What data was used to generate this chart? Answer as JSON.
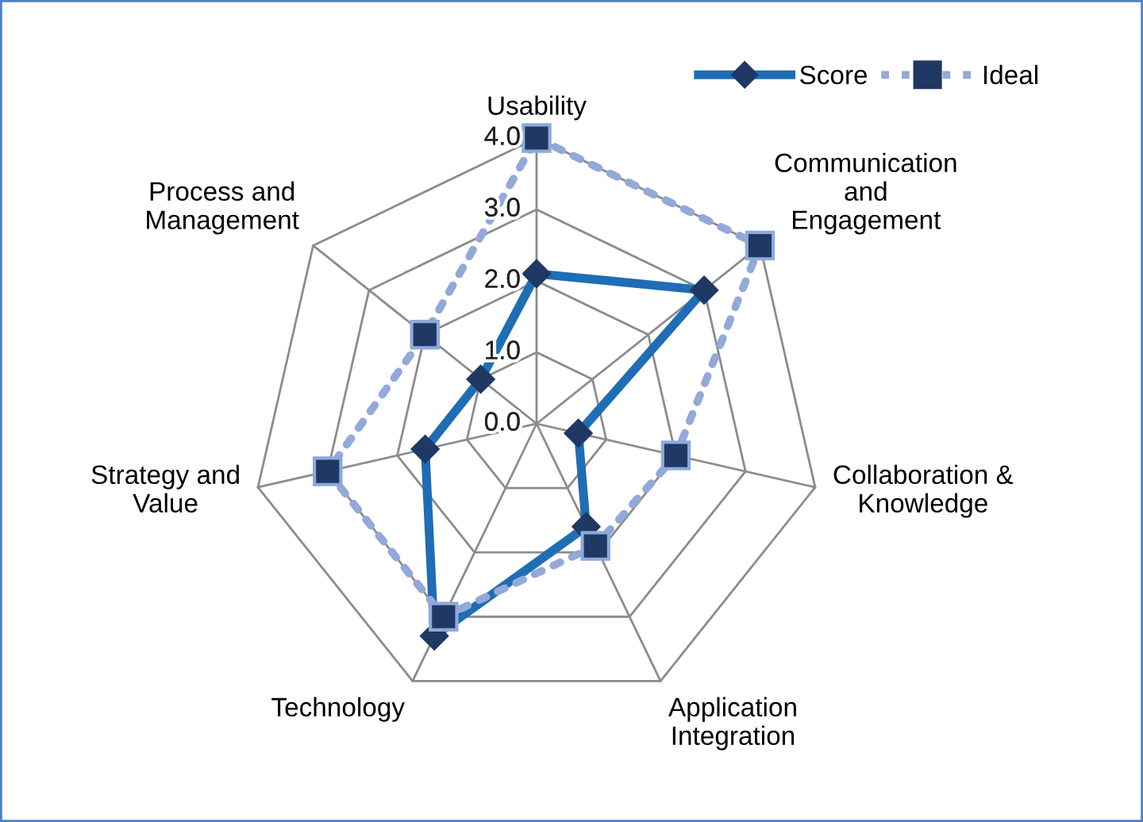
{
  "chart_data": {
    "type": "radar",
    "categories": [
      "Usability",
      "Communication\nand\nEngagement",
      "Collaboration &\nKnowledge",
      "Application\nIntegration",
      "Technology",
      "Strategy and\nValue",
      "Process and\nManagement"
    ],
    "series": [
      {
        "name": "Score",
        "color": "#1f6db5",
        "marker": "diamond",
        "line_style": "solid",
        "values": [
          2.1,
          3.0,
          0.6,
          1.6,
          3.3,
          1.6,
          1.0
        ]
      },
      {
        "name": "Ideal",
        "color": "#92a9d9",
        "marker": "square",
        "line_style": "dotted",
        "values": [
          4.0,
          4.0,
          2.0,
          1.9,
          3.0,
          3.0,
          2.0
        ]
      }
    ],
    "ylim": [
      0,
      4
    ],
    "yticks": [
      {
        "value": 0,
        "label": "0.0"
      },
      {
        "value": 1,
        "label": "1.0"
      },
      {
        "value": 2,
        "label": "2.0"
      },
      {
        "value": 3,
        "label": "3.0"
      },
      {
        "value": 4,
        "label": "4.0"
      }
    ],
    "grid": true,
    "legend": "top right"
  }
}
